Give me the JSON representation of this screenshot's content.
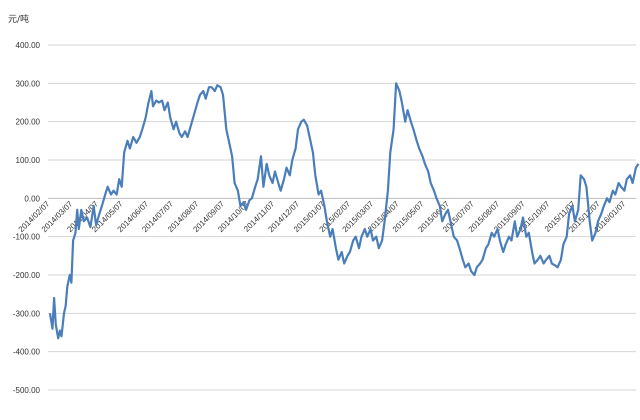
{
  "chart_data": {
    "type": "line",
    "title": "",
    "ylabel": "元/吨",
    "xlabel": "",
    "ylim": [
      -500,
      400
    ],
    "yticks": [
      400,
      300,
      200,
      100,
      0,
      -100,
      -200,
      -300,
      -400,
      -500
    ],
    "ytick_labels": [
      "400.00",
      "300.00",
      "200.00",
      "100.00",
      "0.00",
      "-100.00",
      "-200.00",
      "-300.00",
      "-400.00",
      "-500.00"
    ],
    "xtick_labels": [
      "2014/02/07",
      "2014/03/07",
      "2014/04/07",
      "2014/05/07",
      "2014/06/07",
      "2014/07/07",
      "2014/08/07",
      "2014/09/07",
      "2014/10/07",
      "2014/11/07",
      "2014/12/07",
      "2015/01/07",
      "2015/02/07",
      "2015/03/07",
      "2015/04/07",
      "2015/05/07",
      "2015/06/07",
      "2015/07/07",
      "2015/08/07",
      "2015/09/07",
      "2015/10/07",
      "2015/11/07",
      "2015/12/07",
      "2016/01/07"
    ],
    "grid": true,
    "legend": "none",
    "series": [
      {
        "color": "#4a7ebb",
        "points": [
          [
            "2014/02/07",
            -300
          ],
          [
            "2014/02/10",
            -340
          ],
          [
            "2014/02/12",
            -260
          ],
          [
            "2014/02/14",
            -330
          ],
          [
            "2014/02/17",
            -365
          ],
          [
            "2014/02/19",
            -345
          ],
          [
            "2014/02/21",
            -360
          ],
          [
            "2014/02/24",
            -300
          ],
          [
            "2014/02/26",
            -280
          ],
          [
            "2014/02/28",
            -230
          ],
          [
            "2014/03/03",
            -200
          ],
          [
            "2014/03/05",
            -220
          ],
          [
            "2014/03/07",
            -110
          ],
          [
            "2014/03/10",
            -90
          ],
          [
            "2014/03/12",
            -30
          ],
          [
            "2014/03/14",
            -80
          ],
          [
            "2014/03/17",
            -30
          ],
          [
            "2014/03/20",
            -60
          ],
          [
            "2014/03/24",
            -50
          ],
          [
            "2014/03/28",
            -75
          ],
          [
            "2014/04/01",
            -20
          ],
          [
            "2014/04/04",
            -70
          ],
          [
            "2014/04/08",
            -40
          ],
          [
            "2014/04/11",
            -20
          ],
          [
            "2014/04/15",
            10
          ],
          [
            "2014/04/18",
            30
          ],
          [
            "2014/04/22",
            10
          ],
          [
            "2014/04/25",
            20
          ],
          [
            "2014/04/29",
            10
          ],
          [
            "2014/05/02",
            50
          ],
          [
            "2014/05/05",
            30
          ],
          [
            "2014/05/08",
            120
          ],
          [
            "2014/05/12",
            150
          ],
          [
            "2014/05/15",
            130
          ],
          [
            "2014/05/19",
            160
          ],
          [
            "2014/05/23",
            145
          ],
          [
            "2014/05/27",
            160
          ],
          [
            "2014/05/30",
            180
          ],
          [
            "2014/06/03",
            210
          ],
          [
            "2014/06/06",
            245
          ],
          [
            "2014/06/10",
            280
          ],
          [
            "2014/06/12",
            240
          ],
          [
            "2014/06/16",
            255
          ],
          [
            "2014/06/19",
            250
          ],
          [
            "2014/06/23",
            255
          ],
          [
            "2014/06/26",
            230
          ],
          [
            "2014/06/30",
            250
          ],
          [
            "2014/07/03",
            210
          ],
          [
            "2014/07/07",
            180
          ],
          [
            "2014/07/10",
            200
          ],
          [
            "2014/07/14",
            170
          ],
          [
            "2014/07/17",
            160
          ],
          [
            "2014/07/21",
            175
          ],
          [
            "2014/07/24",
            160
          ],
          [
            "2014/07/28",
            190
          ],
          [
            "2014/08/01",
            220
          ],
          [
            "2014/08/05",
            250
          ],
          [
            "2014/08/08",
            270
          ],
          [
            "2014/08/12",
            280
          ],
          [
            "2014/08/15",
            260
          ],
          [
            "2014/08/19",
            290
          ],
          [
            "2014/08/22",
            290
          ],
          [
            "2014/08/26",
            280
          ],
          [
            "2014/08/29",
            295
          ],
          [
            "2014/09/02",
            290
          ],
          [
            "2014/09/05",
            270
          ],
          [
            "2014/09/09",
            180
          ],
          [
            "2014/09/12",
            150
          ],
          [
            "2014/09/16",
            110
          ],
          [
            "2014/09/19",
            40
          ],
          [
            "2014/09/23",
            20
          ],
          [
            "2014/09/26",
            -20
          ],
          [
            "2014/09/30",
            -10
          ],
          [
            "2014/10/03",
            -30
          ],
          [
            "2014/10/07",
            -5
          ],
          [
            "2014/10/10",
            0
          ],
          [
            "2014/10/14",
            30
          ],
          [
            "2014/10/17",
            50
          ],
          [
            "2014/10/21",
            110
          ],
          [
            "2014/10/24",
            30
          ],
          [
            "2014/10/28",
            90
          ],
          [
            "2014/10/31",
            60
          ],
          [
            "2014/11/04",
            40
          ],
          [
            "2014/11/07",
            70
          ],
          [
            "2014/11/11",
            40
          ],
          [
            "2014/11/14",
            20
          ],
          [
            "2014/11/18",
            50
          ],
          [
            "2014/11/21",
            80
          ],
          [
            "2014/11/25",
            60
          ],
          [
            "2014/11/28",
            100
          ],
          [
            "2014/12/02",
            130
          ],
          [
            "2014/12/05",
            180
          ],
          [
            "2014/12/09",
            200
          ],
          [
            "2014/12/12",
            205
          ],
          [
            "2014/12/16",
            190
          ],
          [
            "2014/12/19",
            160
          ],
          [
            "2014/12/23",
            120
          ],
          [
            "2014/12/26",
            60
          ],
          [
            "2014/12/30",
            10
          ],
          [
            "2015/01/02",
            20
          ],
          [
            "2015/01/06",
            -20
          ],
          [
            "2015/01/09",
            -60
          ],
          [
            "2015/01/13",
            -100
          ],
          [
            "2015/01/16",
            -80
          ],
          [
            "2015/01/20",
            -130
          ],
          [
            "2015/01/23",
            -160
          ],
          [
            "2015/01/27",
            -140
          ],
          [
            "2015/01/30",
            -170
          ],
          [
            "2015/02/03",
            -150
          ],
          [
            "2015/02/06",
            -140
          ],
          [
            "2015/02/10",
            -110
          ],
          [
            "2015/02/13",
            -100
          ],
          [
            "2015/02/17",
            -130
          ],
          [
            "2015/02/20",
            -100
          ],
          [
            "2015/02/24",
            -80
          ],
          [
            "2015/02/27",
            -100
          ],
          [
            "2015/03/03",
            -80
          ],
          [
            "2015/03/06",
            -110
          ],
          [
            "2015/03/10",
            -100
          ],
          [
            "2015/03/13",
            -130
          ],
          [
            "2015/03/17",
            -110
          ],
          [
            "2015/03/20",
            -60
          ],
          [
            "2015/03/24",
            20
          ],
          [
            "2015/03/27",
            120
          ],
          [
            "2015/03/31",
            180
          ],
          [
            "2015/04/03",
            300
          ],
          [
            "2015/04/07",
            280
          ],
          [
            "2015/04/10",
            250
          ],
          [
            "2015/04/14",
            200
          ],
          [
            "2015/04/17",
            230
          ],
          [
            "2015/04/21",
            200
          ],
          [
            "2015/04/24",
            180
          ],
          [
            "2015/04/28",
            150
          ],
          [
            "2015/05/01",
            130
          ],
          [
            "2015/05/05",
            110
          ],
          [
            "2015/05/08",
            90
          ],
          [
            "2015/05/12",
            70
          ],
          [
            "2015/05/15",
            40
          ],
          [
            "2015/05/19",
            20
          ],
          [
            "2015/05/22",
            0
          ],
          [
            "2015/05/26",
            -20
          ],
          [
            "2015/05/29",
            -60
          ],
          [
            "2015/06/02",
            -40
          ],
          [
            "2015/06/05",
            -30
          ],
          [
            "2015/06/09",
            -70
          ],
          [
            "2015/06/12",
            -100
          ],
          [
            "2015/06/16",
            -110
          ],
          [
            "2015/06/19",
            -130
          ],
          [
            "2015/06/23",
            -160
          ],
          [
            "2015/06/26",
            -180
          ],
          [
            "2015/06/30",
            -170
          ],
          [
            "2015/07/03",
            -190
          ],
          [
            "2015/07/07",
            -200
          ],
          [
            "2015/07/10",
            -180
          ],
          [
            "2015/07/14",
            -170
          ],
          [
            "2015/07/17",
            -160
          ],
          [
            "2015/07/21",
            -130
          ],
          [
            "2015/07/24",
            -120
          ],
          [
            "2015/07/28",
            -90
          ],
          [
            "2015/07/31",
            -100
          ],
          [
            "2015/08/04",
            -80
          ],
          [
            "2015/08/07",
            -110
          ],
          [
            "2015/08/11",
            -140
          ],
          [
            "2015/08/14",
            -120
          ],
          [
            "2015/08/18",
            -100
          ],
          [
            "2015/08/21",
            -110
          ],
          [
            "2015/08/25",
            -60
          ],
          [
            "2015/08/28",
            -100
          ],
          [
            "2015/09/01",
            -80
          ],
          [
            "2015/09/04",
            -50
          ],
          [
            "2015/09/08",
            -100
          ],
          [
            "2015/09/11",
            -90
          ],
          [
            "2015/09/15",
            -140
          ],
          [
            "2015/09/18",
            -170
          ],
          [
            "2015/09/22",
            -160
          ],
          [
            "2015/09/25",
            -150
          ],
          [
            "2015/09/29",
            -170
          ],
          [
            "2015/10/02",
            -160
          ],
          [
            "2015/10/06",
            -150
          ],
          [
            "2015/10/09",
            -170
          ],
          [
            "2015/10/13",
            -175
          ],
          [
            "2015/10/16",
            -180
          ],
          [
            "2015/10/20",
            -160
          ],
          [
            "2015/10/23",
            -120
          ],
          [
            "2015/10/27",
            -100
          ],
          [
            "2015/10/30",
            -40
          ],
          [
            "2015/11/03",
            -20
          ],
          [
            "2015/11/06",
            -60
          ],
          [
            "2015/11/10",
            -30
          ],
          [
            "2015/11/13",
            60
          ],
          [
            "2015/11/17",
            50
          ],
          [
            "2015/11/20",
            30
          ],
          [
            "2015/11/24",
            -60
          ],
          [
            "2015/11/27",
            -110
          ],
          [
            "2015/12/01",
            -90
          ],
          [
            "2015/12/04",
            -60
          ],
          [
            "2015/12/08",
            -40
          ],
          [
            "2015/12/11",
            -20
          ],
          [
            "2015/12/15",
            0
          ],
          [
            "2015/12/18",
            -10
          ],
          [
            "2015/12/22",
            20
          ],
          [
            "2015/12/25",
            10
          ],
          [
            "2015/12/29",
            40
          ],
          [
            "2016/01/01",
            30
          ],
          [
            "2016/01/05",
            20
          ],
          [
            "2016/01/08",
            50
          ],
          [
            "2016/01/12",
            60
          ],
          [
            "2016/01/15",
            40
          ],
          [
            "2016/01/19",
            80
          ],
          [
            "2016/01/22",
            90
          ]
        ]
      }
    ]
  }
}
